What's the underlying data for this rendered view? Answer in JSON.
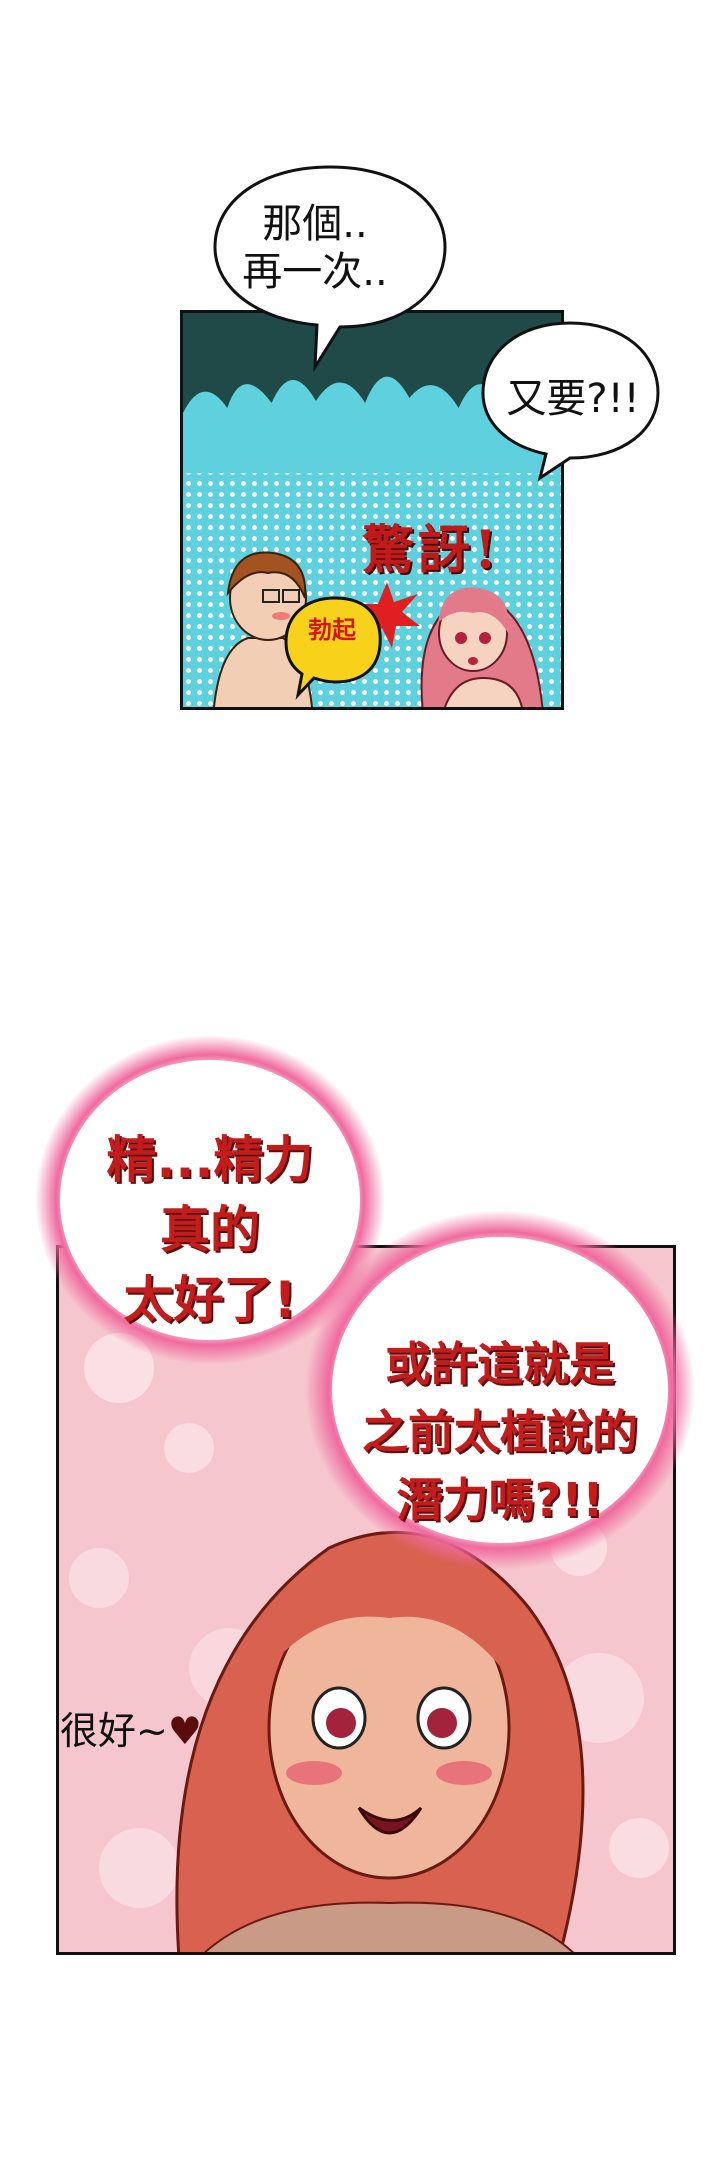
{
  "panel1": {
    "speech_bubble_1": [
      "那個..",
      "再一次.."
    ],
    "speech_bubble_2": "又要?!!",
    "sfx_shock": "驚訝!",
    "sfx_erect": "勃起"
  },
  "panel2": {
    "thought_bubble_1": [
      "精...精力",
      "真的",
      "太好了!"
    ],
    "thought_bubble_2": [
      "或許這就是",
      "之前太植說的",
      "潛力嗎?!!"
    ],
    "aside": "很好~"
  },
  "colors": {
    "sfx_red": "#c21a1a",
    "thought_border_pink": "#e3457f",
    "panel1_blue": "#5fd0dd",
    "panel1_dark": "#1f4a48",
    "panel2_pink": "#f6c6cf"
  }
}
